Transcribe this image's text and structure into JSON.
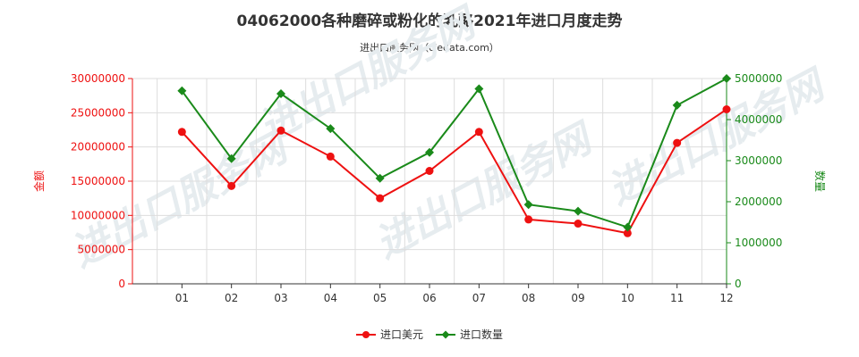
{
  "title": "04062000各种磨碎或粉化的乳酪2021年进口月度走势",
  "subtitle": "进出口服务网（ciedata.com）",
  "watermark": "进出口服务网",
  "colors": {
    "usd": "#ee1111",
    "qty": "#1a8a1a",
    "grid": "#dddddd",
    "axis": "#333333"
  },
  "chart_data": {
    "type": "line",
    "categories": [
      "01",
      "02",
      "03",
      "04",
      "05",
      "06",
      "07",
      "08",
      "09",
      "10",
      "11",
      "12"
    ],
    "series": [
      {
        "name": "进口美元",
        "axis": "left",
        "marker": "circle",
        "values": [
          22200000,
          14300000,
          22400000,
          18600000,
          12500000,
          16500000,
          22200000,
          9400000,
          8800000,
          7400000,
          20600000,
          25500000
        ]
      },
      {
        "name": "进口数量",
        "axis": "right",
        "marker": "diamond",
        "values": [
          4700000,
          3050000,
          4630000,
          3780000,
          2570000,
          3200000,
          4750000,
          1930000,
          1770000,
          1380000,
          4350000,
          5000000
        ]
      }
    ],
    "y_left": {
      "label": "金额",
      "min": 0,
      "max": 30000000,
      "ticks": [
        "0",
        "5000000",
        "10000000",
        "15000000",
        "20000000",
        "25000000",
        "30000000"
      ]
    },
    "y_right": {
      "label": "数量",
      "min": 0,
      "max": 5000000,
      "ticks": [
        "0",
        "1000000",
        "2000000",
        "3000000",
        "4000000",
        "5000000"
      ]
    },
    "grid": true,
    "legend": "bottom-center"
  }
}
